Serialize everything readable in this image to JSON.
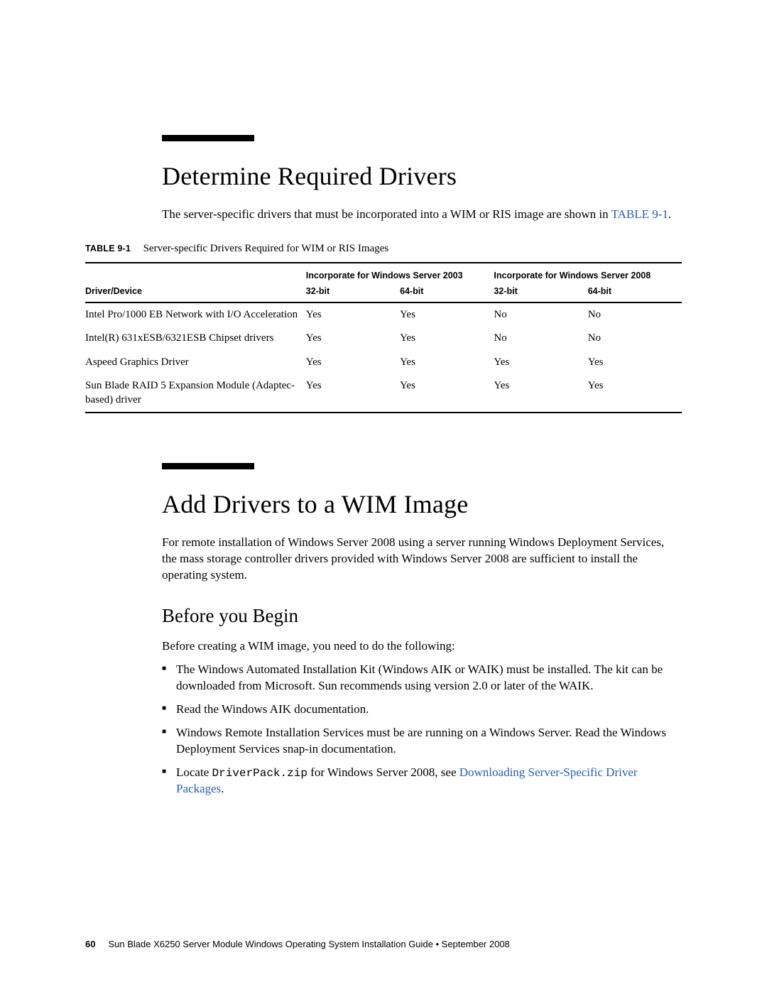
{
  "colors": {
    "text": "#000000",
    "background": "#ffffff",
    "link": "#2a5db0",
    "rule": "#000000"
  },
  "typography": {
    "body_font": "Palatino",
    "sans_font": "Arial/Helvetica",
    "mono_font": "Courier",
    "h1_size_pt": 27,
    "h2_size_pt": 20,
    "body_size_pt": 12.5,
    "table_header_size_pt": 9.5,
    "footer_size_pt": 10
  },
  "section1": {
    "title": "Determine Required Drivers",
    "intro_pre": "The server-specific drivers that must be incorporated into a WIM or RIS image are shown in ",
    "intro_link": "TABLE 9-1",
    "intro_post": "."
  },
  "table": {
    "label": "TABLE 9-1",
    "caption": "Server-specific Drivers Required for WIM or RIS Images",
    "group_headers": [
      "",
      "Incorporate for Windows Server 2003",
      "Incorporate for Windows Server 2008"
    ],
    "sub_headers": [
      "Driver/Device",
      "32-bit",
      "64-bit",
      "32-bit",
      "64-bit"
    ],
    "column_widths_pct": [
      37,
      15.75,
      15.75,
      15.75,
      15.75
    ],
    "rows": [
      [
        "Intel Pro/1000 EB Network with I/O Acceleration",
        "Yes",
        "Yes",
        "No",
        "No"
      ],
      [
        "Intel(R) 631xESB/6321ESB Chipset drivers",
        "Yes",
        "Yes",
        "No",
        "No"
      ],
      [
        "Aspeed Graphics Driver",
        "Yes",
        "Yes",
        "Yes",
        "Yes"
      ],
      [
        "Sun Blade RAID 5 Expansion Module (Adaptec-based) driver",
        "Yes",
        "Yes",
        "Yes",
        "Yes"
      ]
    ]
  },
  "section2": {
    "title": "Add Drivers to a WIM Image",
    "intro": "For remote installation of Windows Server 2008 using a server running Windows Deployment Services, the mass storage controller drivers provided with Windows Server 2008 are sufficient to install the operating system."
  },
  "before": {
    "heading": "Before you Begin",
    "intro": "Before creating a WIM image, you need to do the following:",
    "bullets": {
      "b0": "The Windows Automated Installation Kit (Windows AIK or WAIK) must be installed. The kit can be downloaded from Microsoft. Sun recommends using version 2.0 or later of the WAIK.",
      "b1": "Read the Windows AIK documentation.",
      "b2": "Windows Remote Installation Services must be are running on a Windows Server. Read the Windows Deployment Services snap-in documentation.",
      "b3_pre": "Locate ",
      "b3_code": "DriverPack.zip",
      "b3_mid": " for Windows Server 2008, see ",
      "b3_link": "Downloading Server-Specific Driver Packages",
      "b3_post": "."
    }
  },
  "footer": {
    "page": "60",
    "text": "Sun Blade X6250 Server Module Windows Operating System Installation Guide • September 2008"
  }
}
